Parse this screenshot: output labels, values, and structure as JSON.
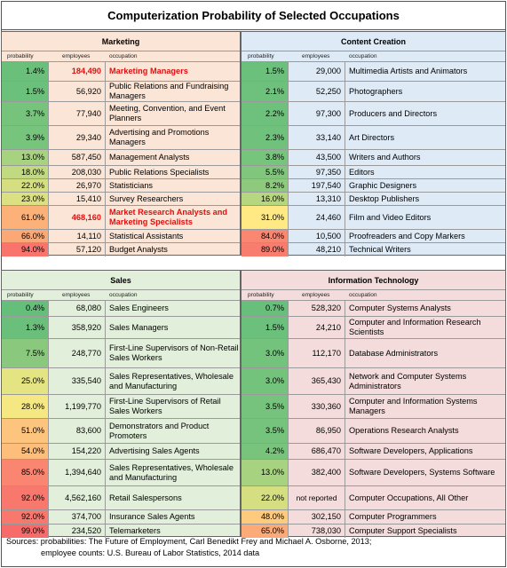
{
  "title": "Computerization Probability of Selected Occupations",
  "columns": {
    "prob": "probability",
    "emp": "employees",
    "occ": "occupation"
  },
  "colors": {
    "marketing_bg": "#fbe5d6",
    "content_bg": "#deebf7",
    "sales_bg": "#e2efda",
    "it_bg": "#f4dcdc",
    "low": "#63be7b",
    "mid": "#ffeb84",
    "high": "#f8696b"
  },
  "sources": {
    "line1": "Sources:  probabilities: The Future of Employment, Carl Benedikt Frey and Michael A. Osborne, 2013;",
    "line2": "employee counts: U.S. Bureau of Labor Statistics, 2014 data"
  },
  "chart_data": {
    "type": "table",
    "title": "Computerization Probability of Selected Occupations",
    "sections": [
      {
        "name": "Marketing",
        "rows": [
          {
            "probability": "1.4%",
            "employees": "184,490",
            "occupation": "Marketing Managers",
            "highlight": true
          },
          {
            "probability": "1.5%",
            "employees": "56,920",
            "occupation": "Public Relations and Fundraising Managers"
          },
          {
            "probability": "3.7%",
            "employees": "77,940",
            "occupation": "Meeting, Convention, and Event Planners"
          },
          {
            "probability": "3.9%",
            "employees": "29,340",
            "occupation": "Advertising and Promotions Managers"
          },
          {
            "probability": "13.0%",
            "employees": "587,450",
            "occupation": "Management Analysts"
          },
          {
            "probability": "18.0%",
            "employees": "208,030",
            "occupation": "Public Relations Specialists"
          },
          {
            "probability": "22.0%",
            "employees": "26,970",
            "occupation": "Statisticians"
          },
          {
            "probability": "23.0%",
            "employees": "15,410",
            "occupation": "Survey Researchers"
          },
          {
            "probability": "61.0%",
            "employees": "468,160",
            "occupation": "Market Research Analysts and Marketing Specialists",
            "highlight": true
          },
          {
            "probability": "66.0%",
            "employees": "14,110",
            "occupation": "Statistical Assistants"
          },
          {
            "probability": "94.0%",
            "employees": "57,120",
            "occupation": "Budget Analysts"
          }
        ]
      },
      {
        "name": "Content Creation",
        "rows": [
          {
            "probability": "1.5%",
            "employees": "29,000",
            "occupation": "Multimedia Artists and Animators"
          },
          {
            "probability": "2.1%",
            "employees": "52,250",
            "occupation": "Photographers"
          },
          {
            "probability": "2.2%",
            "employees": "97,300",
            "occupation": "Producers and Directors"
          },
          {
            "probability": "2.3%",
            "employees": "33,140",
            "occupation": "Art Directors"
          },
          {
            "probability": "3.8%",
            "employees": "43,500",
            "occupation": "Writers and Authors"
          },
          {
            "probability": "5.5%",
            "employees": "97,350",
            "occupation": "Editors"
          },
          {
            "probability": "8.2%",
            "employees": "197,540",
            "occupation": "Graphic Designers"
          },
          {
            "probability": "16.0%",
            "employees": "13,310",
            "occupation": "Desktop Publishers"
          },
          {
            "probability": "31.0%",
            "employees": "24,460",
            "occupation": "Film and Video Editors"
          },
          {
            "probability": "84.0%",
            "employees": "10,500",
            "occupation": "Proofreaders and Copy Markers"
          },
          {
            "probability": "89.0%",
            "employees": "48,210",
            "occupation": "Technical Writers"
          }
        ]
      },
      {
        "name": "Sales",
        "rows": [
          {
            "probability": "0.4%",
            "employees": "68,080",
            "occupation": "Sales Engineers"
          },
          {
            "probability": "1.3%",
            "employees": "358,920",
            "occupation": "Sales Managers"
          },
          {
            "probability": "7.5%",
            "employees": "248,770",
            "occupation": "First-Line Supervisors of Non-Retail Sales Workers"
          },
          {
            "probability": "25.0%",
            "employees": "335,540",
            "occupation": "Sales Representatives, Wholesale and Manufacturing"
          },
          {
            "probability": "28.0%",
            "employees": "1,199,770",
            "occupation": "First-Line Supervisors of Retail Sales Workers"
          },
          {
            "probability": "51.0%",
            "employees": "83,600",
            "occupation": "Demonstrators and Product Promoters"
          },
          {
            "probability": "54.0%",
            "employees": "154,220",
            "occupation": "Advertising Sales Agents"
          },
          {
            "probability": "85.0%",
            "employees": "1,394,640",
            "occupation": "Sales Representatives, Wholesale and Manufacturing"
          },
          {
            "probability": "92.0%",
            "employees": "4,562,160",
            "occupation": "Retail Salespersons"
          },
          {
            "probability": "92.0%",
            "employees": "374,700",
            "occupation": "Insurance Sales Agents"
          },
          {
            "probability": "99.0%",
            "employees": "234,520",
            "occupation": "Telemarketers"
          }
        ]
      },
      {
        "name": "Information Technology",
        "rows": [
          {
            "probability": "0.7%",
            "employees": "528,320",
            "occupation": "Computer Systems Analysts"
          },
          {
            "probability": "1.5%",
            "employees": "24,210",
            "occupation": "Computer and Information Research Scientists"
          },
          {
            "probability": "3.0%",
            "employees": "112,170",
            "occupation": "Database Administrators"
          },
          {
            "probability": "3.0%",
            "employees": "365,430",
            "occupation": "Network and Computer Systems Administrators"
          },
          {
            "probability": "3.5%",
            "employees": "330,360",
            "occupation": "Computer and Information Systems Managers"
          },
          {
            "probability": "3.5%",
            "employees": "86,950",
            "occupation": "Operations Research Analysts"
          },
          {
            "probability": "4.2%",
            "employees": "686,470",
            "occupation": "Software Developers,  Applications"
          },
          {
            "probability": "13.0%",
            "employees": "382,400",
            "occupation": "Software Developers, Systems Software"
          },
          {
            "probability": "22.0%",
            "employees": "not reported",
            "occupation": "Computer Occupations, All Other"
          },
          {
            "probability": "48.0%",
            "employees": "302,150",
            "occupation": "Computer Programmers"
          },
          {
            "probability": "65.0%",
            "employees": "738,030",
            "occupation": "Computer Support Specialists"
          }
        ]
      }
    ]
  }
}
